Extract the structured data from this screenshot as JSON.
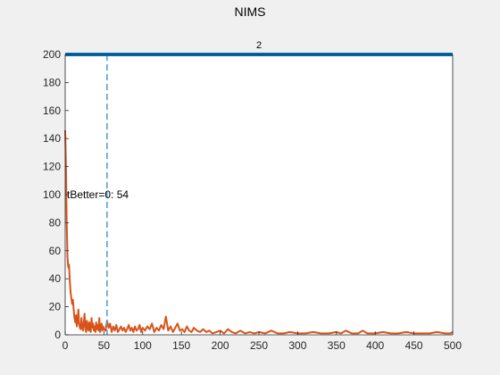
{
  "figure_title": "NIMS",
  "colors": {
    "background": "#f0f0f0",
    "axes_background": "#ffffff",
    "axis_line": "#262626",
    "series_top": "#0072bd",
    "series_noise": "#d95319",
    "marker_line": "#4a9cc9"
  },
  "chart_data": {
    "type": "line",
    "title": "2",
    "xlabel": "",
    "ylabel": "",
    "xlim": [
      0,
      500
    ],
    "ylim": [
      0,
      200
    ],
    "xticks": [
      0,
      50,
      100,
      150,
      200,
      250,
      300,
      350,
      400,
      450,
      500
    ],
    "yticks": [
      0,
      20,
      40,
      60,
      80,
      100,
      120,
      140,
      160,
      180,
      200
    ],
    "grid": false,
    "legend": "none",
    "series": [
      {
        "color": "#0072bd",
        "x": [
          0,
          500
        ],
        "y": [
          200,
          200
        ]
      },
      {
        "color": "#d95319",
        "x": [
          0,
          1,
          2,
          3,
          4,
          5,
          6,
          7,
          8,
          9,
          10,
          11,
          12,
          13,
          14,
          15,
          16,
          17,
          18,
          19,
          20,
          21,
          22,
          23,
          24,
          25,
          26,
          27,
          28,
          29,
          30,
          31,
          32,
          33,
          34,
          35,
          36,
          37,
          38,
          39,
          40,
          41,
          42,
          43,
          44,
          45,
          46,
          47,
          48,
          49,
          50,
          52,
          54,
          56,
          58,
          60,
          62,
          64,
          66,
          68,
          70,
          72,
          74,
          76,
          78,
          80,
          82,
          84,
          86,
          88,
          90,
          92,
          94,
          96,
          98,
          100,
          103,
          106,
          109,
          112,
          115,
          118,
          121,
          124,
          127,
          130,
          133,
          136,
          139,
          142,
          145,
          148,
          151,
          154,
          157,
          160,
          163,
          166,
          170,
          174,
          178,
          182,
          186,
          190,
          195,
          200,
          205,
          210,
          215,
          220,
          226,
          232,
          238,
          244,
          250,
          258,
          266,
          274,
          282,
          290,
          300,
          310,
          320,
          330,
          340,
          350,
          356,
          362,
          370,
          378,
          384,
          390,
          400,
          410,
          420,
          430,
          440,
          450,
          460,
          470,
          480,
          490,
          497,
          500
        ],
        "y": [
          146,
          120,
          80,
          55,
          48,
          50,
          38,
          30,
          26,
          22,
          25,
          18,
          12,
          9,
          14,
          6,
          10,
          18,
          8,
          5,
          4,
          12,
          6,
          3,
          8,
          15,
          5,
          2,
          10,
          6,
          3,
          9,
          4,
          2,
          12,
          5,
          8,
          3,
          6,
          2,
          9,
          4,
          7,
          3,
          12,
          2,
          5,
          8,
          3,
          6,
          4,
          3,
          10,
          5,
          8,
          2,
          6,
          3,
          7,
          2,
          4,
          6,
          3,
          5,
          2,
          4,
          7,
          3,
          5,
          2,
          6,
          3,
          4,
          7,
          2,
          5,
          3,
          6,
          4,
          8,
          2,
          5,
          3,
          7,
          4,
          13,
          3,
          6,
          2,
          5,
          8,
          3,
          4,
          2,
          6,
          3,
          2,
          5,
          3,
          2,
          4,
          2,
          3,
          1,
          2,
          3,
          1,
          4,
          2,
          1,
          3,
          1,
          2,
          1,
          2,
          1,
          3,
          1,
          1,
          2,
          1,
          1,
          2,
          1,
          1,
          2,
          1,
          3,
          1,
          1,
          3,
          1,
          1,
          2,
          1,
          1,
          2,
          1,
          1,
          1,
          2,
          1,
          1,
          2
        ]
      }
    ],
    "vline": {
      "x": 54,
      "color": "#4a9cc9",
      "dash": true
    },
    "annotation": {
      "text": "tBetter=0: 54",
      "x": 0,
      "y": 100
    }
  }
}
